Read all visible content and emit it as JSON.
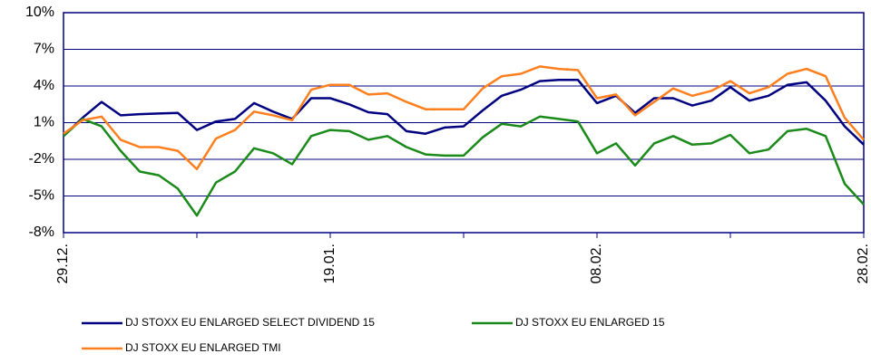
{
  "chart_data": {
    "type": "line",
    "categories": [
      "29.12.",
      null,
      null,
      null,
      null,
      null,
      null,
      null,
      null,
      null,
      null,
      null,
      null,
      null,
      "19.01.",
      null,
      null,
      null,
      null,
      null,
      null,
      null,
      null,
      null,
      null,
      null,
      null,
      null,
      "08.02.",
      null,
      null,
      null,
      null,
      null,
      null,
      null,
      null,
      null,
      null,
      null,
      null,
      null,
      "28.02."
    ],
    "series": [
      {
        "name": "DJ STOXX EU ENLARGED SELECT DIVIDEND 15",
        "color": "#000080",
        "values": [
          -0.1,
          1.4,
          2.7,
          1.6,
          1.7,
          1.75,
          1.8,
          0.4,
          1.1,
          1.3,
          2.6,
          1.9,
          1.3,
          3.0,
          3.0,
          2.5,
          1.85,
          1.7,
          0.3,
          0.1,
          0.6,
          0.7,
          2.0,
          3.2,
          3.7,
          4.4,
          4.5,
          4.5,
          2.6,
          3.2,
          1.8,
          3.0,
          3.0,
          2.4,
          2.8,
          3.9,
          2.8,
          3.2,
          4.1,
          4.3,
          2.8,
          0.7,
          -0.8
        ]
      },
      {
        "name": "DJ STOXX EU ENLARGED 15",
        "color": "#1a8a1a",
        "values": [
          -0.1,
          1.3,
          0.7,
          -1.3,
          -3.0,
          -3.3,
          -4.4,
          -6.6,
          -3.9,
          -3.0,
          -1.1,
          -1.5,
          -2.4,
          -0.1,
          0.4,
          0.3,
          -0.4,
          -0.1,
          -1.0,
          -1.6,
          -1.7,
          -1.7,
          -0.2,
          0.9,
          0.7,
          1.5,
          1.3,
          1.1,
          -1.5,
          -0.7,
          -2.5,
          -0.7,
          -0.1,
          -0.8,
          -0.7,
          0.0,
          -1.5,
          -1.2,
          0.3,
          0.5,
          -0.1,
          -4.0,
          -5.7
        ]
      },
      {
        "name": "DJ STOXX EU ENLARGED TMI",
        "color": "#ff7f1e",
        "values": [
          0.1,
          1.2,
          1.5,
          -0.4,
          -1.0,
          -1.0,
          -1.3,
          -2.8,
          -0.3,
          0.4,
          1.9,
          1.6,
          1.2,
          3.7,
          4.1,
          4.1,
          3.3,
          3.4,
          2.7,
          2.1,
          2.1,
          2.1,
          3.8,
          4.8,
          5.0,
          5.6,
          5.4,
          5.3,
          3.0,
          3.3,
          1.6,
          2.7,
          3.8,
          3.2,
          3.6,
          4.4,
          3.4,
          3.9,
          5.0,
          5.4,
          4.8,
          1.4,
          -0.4
        ]
      }
    ],
    "ylim": [
      -8,
      10
    ],
    "yticks": [
      {
        "value": -8,
        "label": "-8%"
      },
      {
        "value": -5,
        "label": "-5%"
      },
      {
        "value": -2,
        "label": "-2%"
      },
      {
        "value": 1,
        "label": "1%"
      },
      {
        "value": 4,
        "label": "4%"
      },
      {
        "value": 7,
        "label": "7%"
      },
      {
        "value": 10,
        "label": "10%"
      }
    ],
    "grid": true,
    "legend": "bottom"
  }
}
